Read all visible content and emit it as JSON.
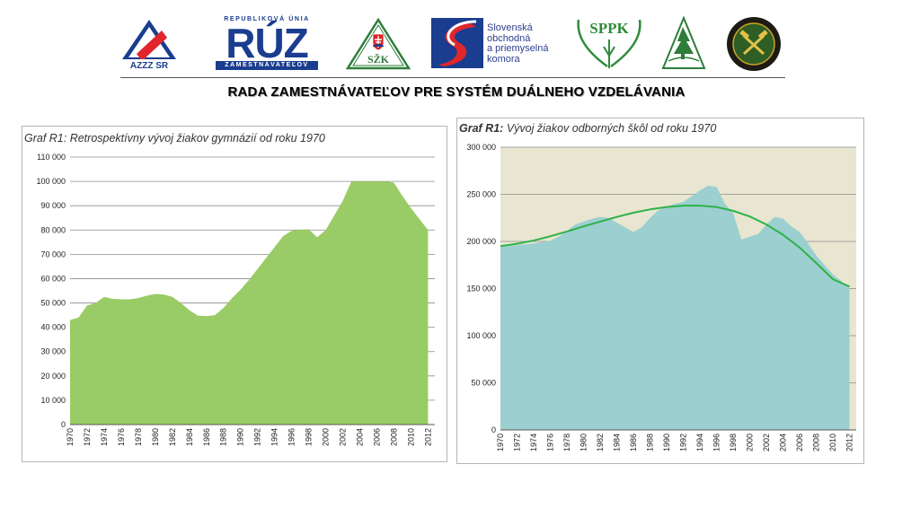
{
  "header": {
    "logos": {
      "azzz": "AZZZ SR",
      "ruz_top": "REPUBLIKOVÁ ÚNIA",
      "ruz_main": "RÚZ",
      "ruz_bottom": "ZAMESTNÁVATEĽOV",
      "szk": "SŽK",
      "soz_line1": "Slovenská",
      "soz_line2": "obchodná",
      "soz_line3": "a priemyselná",
      "soz_line4": "komora",
      "sppk": "SPPK"
    },
    "banner": "RADA ZAMESTNÁVATEĽOV PRE SYSTÉM DUÁLNEHO VZDELÁVANIA"
  },
  "colors": {
    "left_fill": "#99cc66",
    "right_fill": "#9ccfcf",
    "right_plot_bg": "#e8e6d0",
    "trend_line": "#2db24a",
    "grid": "#8c8c8c"
  },
  "chart_data": [
    {
      "type": "area",
      "title": "Graf R1: Retrospektívny vývoj žiakov gymnázií od roku 1970",
      "xlabel": "",
      "ylabel": "",
      "ylim": [
        0,
        110000
      ],
      "yticks": [
        0,
        10000,
        20000,
        30000,
        40000,
        50000,
        60000,
        70000,
        80000,
        90000,
        100000,
        110000
      ],
      "ytick_labels": [
        "0",
        "10 000",
        "20 000",
        "30 000",
        "40 000",
        "50 000",
        "60 000",
        "70 000",
        "80 000",
        "90 000",
        "100 000",
        "110 000"
      ],
      "xtick_labels": [
        "1970",
        "1972",
        "1974",
        "1976",
        "1978",
        "1980",
        "1982",
        "1984",
        "1986",
        "1988",
        "1990",
        "1992",
        "1994",
        "1996",
        "1998",
        "2000",
        "2002",
        "2004",
        "2006",
        "2008",
        "2010",
        "2012"
      ],
      "grid": true,
      "x": [
        1970,
        1971,
        1972,
        1973,
        1974,
        1975,
        1976,
        1977,
        1978,
        1979,
        1980,
        1981,
        1982,
        1983,
        1984,
        1985,
        1986,
        1987,
        1988,
        1989,
        1990,
        1991,
        1992,
        1993,
        1994,
        1995,
        1996,
        1997,
        1998,
        1999,
        2000,
        2001,
        2002,
        2003,
        2004,
        2005,
        2006,
        2007,
        2008,
        2009,
        2010,
        2011,
        2012
      ],
      "values": [
        43000,
        44000,
        49000,
        50000,
        52500,
        51700,
        51500,
        51500,
        52000,
        53000,
        53700,
        53500,
        52500,
        50000,
        47000,
        44800,
        44600,
        45000,
        48000,
        52000,
        55500,
        59500,
        64000,
        68500,
        73000,
        77500,
        79700,
        80200,
        80300,
        77000,
        80000,
        86000,
        92000,
        100000,
        100000,
        100000,
        100000,
        100000,
        99500,
        94000,
        89000,
        84500,
        80000
      ]
    },
    {
      "type": "area",
      "title": "Graf R1: Vývoj žiakov odborných škôl od roku 1970",
      "title_bold": "Graf R1:",
      "title_rest": "Vývoj žiakov odborných škôl od roku 1970",
      "xlabel": "",
      "ylabel": "",
      "ylim": [
        0,
        300000
      ],
      "yticks": [
        0,
        50000,
        100000,
        150000,
        200000,
        250000,
        300000
      ],
      "ytick_labels": [
        "0",
        "50 000",
        "100 000",
        "150 000",
        "200 000",
        "250 000",
        "300 000"
      ],
      "xtick_labels": [
        "1970",
        "1972",
        "1974",
        "1976",
        "1978",
        "1980",
        "1982",
        "1984",
        "1986",
        "1988",
        "1990",
        "1992",
        "1994",
        "1996",
        "1998",
        "2000",
        "2002",
        "2004",
        "2006",
        "2008",
        "2010",
        "2012"
      ],
      "grid": true,
      "x": [
        1970,
        1971,
        1972,
        1973,
        1974,
        1975,
        1976,
        1977,
        1978,
        1979,
        1980,
        1981,
        1982,
        1983,
        1984,
        1985,
        1986,
        1987,
        1988,
        1989,
        1990,
        1991,
        1992,
        1993,
        1994,
        1995,
        1996,
        1997,
        1998,
        1999,
        2000,
        2001,
        2002,
        2003,
        2004,
        2005,
        2006,
        2007,
        2008,
        2009,
        2010,
        2011,
        2012
      ],
      "values": [
        194000,
        195000,
        196000,
        197000,
        198000,
        199000,
        201000,
        205000,
        211000,
        218000,
        221000,
        224000,
        226000,
        225000,
        220000,
        215000,
        210000,
        215000,
        225000,
        233000,
        237000,
        240000,
        242000,
        248000,
        254000,
        259000,
        258000,
        240000,
        230000,
        202000,
        205000,
        208000,
        218000,
        226000,
        224000,
        216000,
        210000,
        198000,
        185000,
        175000,
        165000,
        158000,
        150000
      ],
      "trend": {
        "name": "",
        "x": [
          1970,
          1972,
          1974,
          1976,
          1978,
          1980,
          1982,
          1984,
          1986,
          1988,
          1990,
          1992,
          1994,
          1996,
          1998,
          2000,
          2002,
          2004,
          2006,
          2008,
          2010,
          2012
        ],
        "values": [
          195000,
          197500,
          201000,
          205500,
          210500,
          216000,
          221000,
          226000,
          230500,
          234000,
          236500,
          238000,
          238000,
          236500,
          232500,
          226500,
          218000,
          207000,
          193500,
          177000,
          160000,
          152000
        ]
      }
    }
  ]
}
